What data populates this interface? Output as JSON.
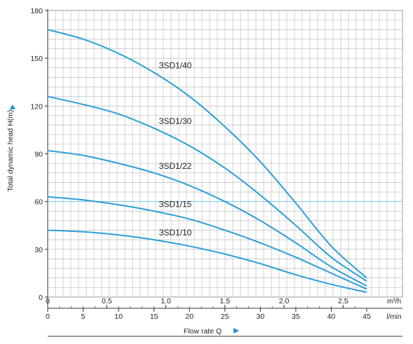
{
  "chart_data": {
    "type": "line",
    "ylabel": "Total dynamic head H(m)",
    "xlabel": "Flow rate Q",
    "ylim": [
      0,
      180
    ],
    "yticks": [
      0,
      30,
      60,
      90,
      120,
      150,
      180
    ],
    "x_primary": {
      "unit": "m³/h",
      "range": [
        0,
        2.7
      ],
      "ticks": [
        0,
        0.5,
        1.0,
        1.5,
        2.0,
        2.5
      ],
      "tick_labels": [
        "0",
        "0.5",
        "1.0",
        "1.5",
        "2.0",
        "2.5"
      ]
    },
    "x_secondary": {
      "unit": "l/min",
      "range": [
        0,
        45
      ],
      "ticks": [
        0,
        5,
        10,
        15,
        20,
        25,
        30,
        35,
        40,
        45
      ],
      "tick_labels": [
        "0",
        "5",
        "10",
        "15",
        "20",
        "25",
        "30",
        "35",
        "40",
        "45"
      ]
    },
    "grid": true,
    "reference_line": {
      "y": 60
    },
    "series_x": [
      0,
      5,
      10,
      15,
      20,
      25,
      30,
      35,
      40,
      45
    ],
    "series": [
      {
        "name": "3SD1/40",
        "values": [
          168,
          162,
          153,
          141,
          126,
          107,
          85,
          59,
          32,
          12
        ]
      },
      {
        "name": "3SD1/30",
        "values": [
          126,
          121,
          115,
          106,
          95,
          81,
          64,
          45,
          25,
          10
        ]
      },
      {
        "name": "3SD1/22",
        "values": [
          92,
          89,
          84,
          78,
          70,
          60,
          48,
          34,
          19,
          7
        ]
      },
      {
        "name": "3SD1/15",
        "values": [
          63,
          61,
          58,
          54,
          49,
          42,
          34,
          25,
          15,
          5
        ]
      },
      {
        "name": "3SD1/10",
        "values": [
          42,
          41,
          39,
          36,
          32,
          27,
          21,
          14,
          8,
          3
        ]
      }
    ],
    "colors": {
      "curve": "#2b9fd9",
      "reference": "#7cc6ec",
      "grid": "#b5b5b5",
      "axis": "#333333",
      "arrow": "#1f8fd0"
    }
  }
}
